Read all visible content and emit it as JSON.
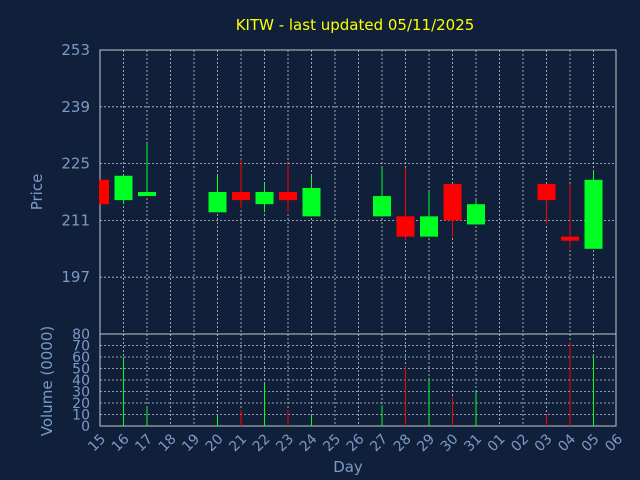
{
  "chart_data": {
    "type": "candlestick",
    "title": "KITW - last updated 05/11/2025",
    "ylabel_price": "Price",
    "ylabel_volume": "Volume (0000)",
    "xlabel": "Day",
    "price_ylim": [
      183,
      253
    ],
    "price_ticks": [
      197,
      211,
      225,
      239,
      253
    ],
    "volume_ylim": [
      0,
      80
    ],
    "volume_ticks": [
      0,
      10,
      20,
      30,
      40,
      50,
      60,
      70,
      80
    ],
    "x_ticks": [
      "15",
      "16",
      "17",
      "18",
      "19",
      "20",
      "21",
      "22",
      "23",
      "24",
      "25",
      "26",
      "27",
      "28",
      "29",
      "30",
      "31",
      "01",
      "02",
      "03",
      "04",
      "05",
      "06"
    ],
    "grid": true,
    "colors": {
      "background": "#11203a",
      "text": "#7b9ac7",
      "title": "#ffff00",
      "up": "#00ff22",
      "down": "#ff0000",
      "grid": "#c8c8c8"
    },
    "series": [
      {
        "day": "15",
        "open": 221,
        "high": 221,
        "low": 215,
        "close": 215,
        "volume": 0
      },
      {
        "day": "16",
        "open": 216,
        "high": 222,
        "low": 215,
        "close": 222,
        "volume": 60
      },
      {
        "day": "17",
        "open": 217,
        "high": 230,
        "low": 217,
        "close": 218,
        "volume": 16
      },
      {
        "day": "20",
        "open": 213,
        "high": 222,
        "low": 213,
        "close": 218,
        "volume": 10
      },
      {
        "day": "21",
        "open": 218,
        "high": 226,
        "low": 214,
        "close": 216,
        "volume": 14
      },
      {
        "day": "22",
        "open": 215,
        "high": 220,
        "low": 213,
        "close": 218,
        "volume": 37
      },
      {
        "day": "23",
        "open": 218,
        "high": 225,
        "low": 213,
        "close": 216,
        "volume": 14
      },
      {
        "day": "24",
        "open": 212,
        "high": 222,
        "low": 212,
        "close": 219,
        "volume": 10
      },
      {
        "day": "27",
        "open": 212,
        "high": 224,
        "low": 212,
        "close": 217,
        "volume": 18
      },
      {
        "day": "28",
        "open": 212,
        "high": 224,
        "low": 206,
        "close": 207,
        "volume": 52
      },
      {
        "day": "29",
        "open": 207,
        "high": 218,
        "low": 207,
        "close": 212,
        "volume": 42
      },
      {
        "day": "30",
        "open": 220,
        "high": 220,
        "low": 207,
        "close": 211,
        "volume": 25
      },
      {
        "day": "31",
        "open": 210,
        "high": 216,
        "low": 210,
        "close": 215,
        "volume": 30
      },
      {
        "day": "03",
        "open": 220,
        "high": 220,
        "low": 210,
        "close": 216,
        "volume": 10
      },
      {
        "day": "04",
        "open": 207,
        "high": 220,
        "low": 204,
        "close": 206,
        "volume": 73
      },
      {
        "day": "05",
        "open": 204,
        "high": 223,
        "low": 204,
        "close": 221,
        "volume": 60
      }
    ]
  }
}
